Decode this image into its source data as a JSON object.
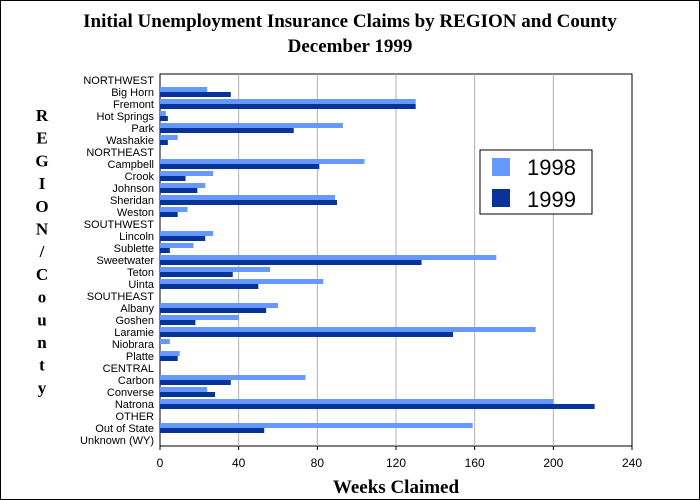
{
  "chart_data": {
    "type": "bar",
    "orientation": "horizontal",
    "title": "Initial Unemployment Insurance Claims by REGION and County",
    "subtitle": "December 1999",
    "xlabel": "Weeks Claimed",
    "ylabel": "REGION/County",
    "xlim": [
      0,
      240
    ],
    "xticks": [
      "0",
      "40",
      "80",
      "120",
      "160",
      "200",
      "240"
    ],
    "grid": true,
    "legend_position": "right",
    "categories": [
      "NORTHWEST",
      "Big Horn",
      "Fremont",
      "Hot Springs",
      "Park",
      "Washakie",
      "NORTHEAST",
      "Campbell",
      "Crook",
      "Johnson",
      "Sheridan",
      "Weston",
      "SOUTHWEST",
      "Lincoln",
      "Sublette",
      "Sweetwater",
      "Teton",
      "Uinta",
      "SOUTHEAST",
      "Albany",
      "Goshen",
      "Laramie",
      "Niobrara",
      "Platte",
      "CENTRAL",
      "Carbon",
      "Converse",
      "Natrona",
      "OTHER",
      "Out of State",
      "Unknown (WY)"
    ],
    "series": [
      {
        "name": "1998",
        "color": "#6699ff",
        "values": [
          null,
          24,
          130,
          3,
          93,
          9,
          null,
          104,
          27,
          23,
          89,
          14,
          null,
          27,
          17,
          171,
          56,
          83,
          null,
          60,
          40,
          191,
          5,
          10,
          null,
          74,
          24,
          200,
          null,
          159,
          0
        ]
      },
      {
        "name": "1999",
        "color": "#0a3399",
        "values": [
          null,
          36,
          130,
          4,
          68,
          4,
          null,
          81,
          13,
          19,
          90,
          9,
          null,
          23,
          5,
          133,
          37,
          50,
          null,
          54,
          18,
          149,
          0,
          9,
          null,
          36,
          28,
          221,
          null,
          53,
          0
        ]
      }
    ]
  }
}
